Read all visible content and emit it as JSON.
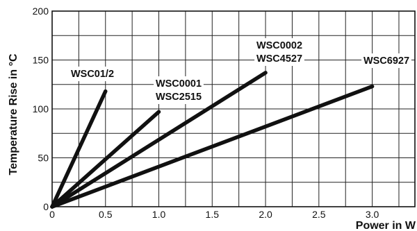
{
  "chart_data": {
    "type": "line",
    "title": "",
    "xlabel": "Power in W",
    "ylabel": "Temperature Rise in °C",
    "xlim": [
      0,
      3.4
    ],
    "ylim": [
      0,
      200
    ],
    "x_ticks": [
      "0",
      "0.5",
      "1.0",
      "1.5",
      "2.0",
      "2.5",
      "3.0"
    ],
    "x_tick_values": [
      0,
      0.5,
      1.0,
      1.5,
      2.0,
      2.5,
      3.0
    ],
    "x_grid_step": 0.25,
    "y_ticks": [
      "0",
      "50",
      "100",
      "150",
      "200"
    ],
    "y_tick_values": [
      0,
      50,
      100,
      150,
      200
    ],
    "y_grid_step": 25,
    "grid": true,
    "series": [
      {
        "label_lines": [
          "WSC01/2"
        ],
        "x": [
          0,
          0.5
        ],
        "y": [
          0,
          118
        ]
      },
      {
        "label_lines": [
          "WSC0001",
          "WSC2515"
        ],
        "x": [
          0,
          1.0
        ],
        "y": [
          0,
          97
        ]
      },
      {
        "label_lines": [
          "WSC0002",
          "WSC4527"
        ],
        "x": [
          0,
          2.0
        ],
        "y": [
          0,
          137
        ]
      },
      {
        "label_lines": [
          "WSC6927"
        ],
        "x": [
          0,
          3.0
        ],
        "y": [
          0,
          123
        ]
      }
    ]
  }
}
